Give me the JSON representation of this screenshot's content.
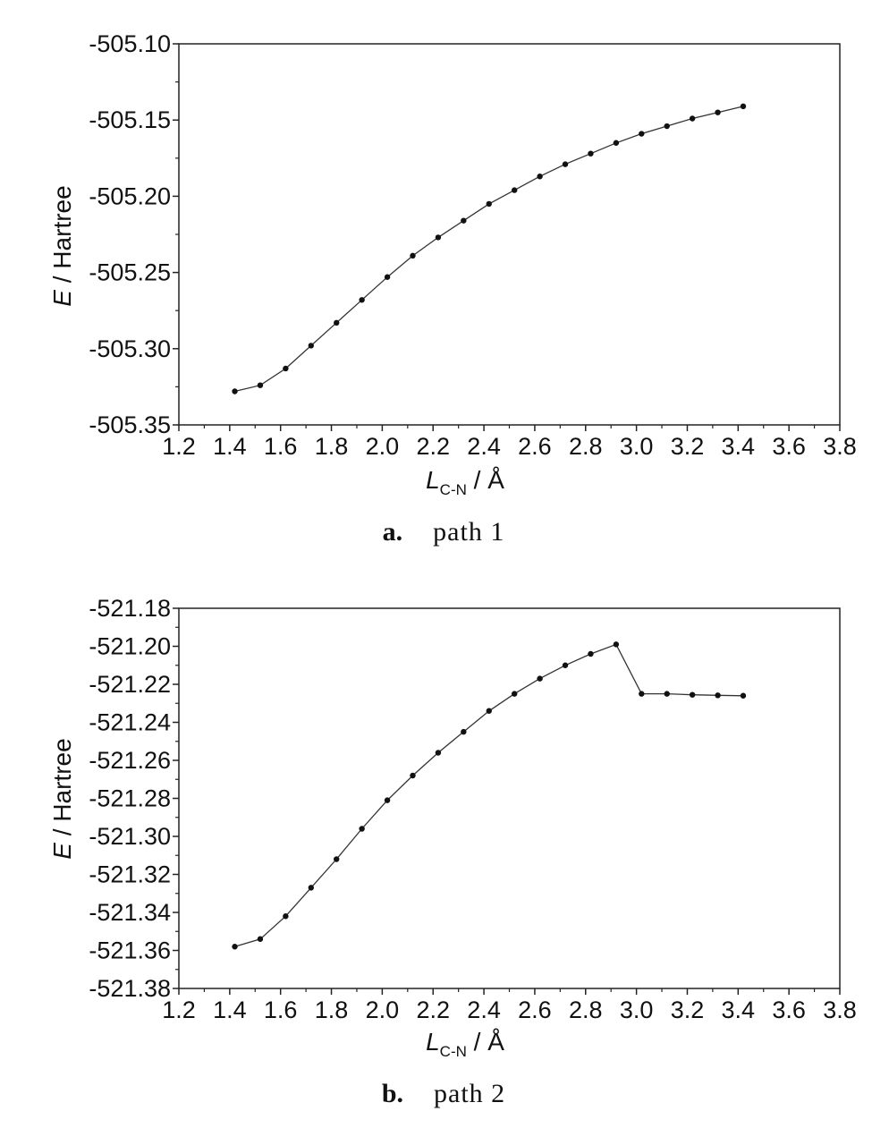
{
  "chart_data": [
    {
      "type": "line",
      "caption_letter": "a.",
      "caption_text": "path 1",
      "ylabel_italic": "E",
      "ylabel_rest": " / Hartree",
      "xlabel_italic": "L",
      "xlabel_sub": "C-N",
      "xlabel_rest": " / Å",
      "xlim": [
        1.2,
        3.8
      ],
      "ylim": [
        -505.35,
        -505.1
      ],
      "xticks": [
        "1.2",
        "1.4",
        "1.6",
        "1.8",
        "2.0",
        "2.2",
        "2.4",
        "2.6",
        "2.8",
        "3.0",
        "3.2",
        "3.4",
        "3.6",
        "3.8"
      ],
      "yticks": [
        "-505.10",
        "-505.15",
        "-505.20",
        "-505.25",
        "-505.30",
        "-505.35"
      ],
      "x": [
        1.42,
        1.52,
        1.62,
        1.72,
        1.82,
        1.92,
        2.02,
        2.12,
        2.22,
        2.32,
        2.42,
        2.52,
        2.62,
        2.72,
        2.82,
        2.92,
        3.02,
        3.12,
        3.22,
        3.32,
        3.42
      ],
      "y": [
        -505.328,
        -505.324,
        -505.313,
        -505.298,
        -505.283,
        -505.268,
        -505.253,
        -505.239,
        -505.227,
        -505.216,
        -505.205,
        -505.196,
        -505.187,
        -505.179,
        -505.172,
        -505.165,
        -505.159,
        -505.154,
        -505.149,
        -505.145,
        -505.141
      ]
    },
    {
      "type": "line",
      "caption_letter": "b.",
      "caption_text": "path 2",
      "ylabel_italic": "E",
      "ylabel_rest": " / Hartree",
      "xlabel_italic": "L",
      "xlabel_sub": "C-N",
      "xlabel_rest": " / Å",
      "xlim": [
        1.2,
        3.8
      ],
      "ylim": [
        -521.38,
        -521.18
      ],
      "xticks": [
        "1.2",
        "1.4",
        "1.6",
        "1.8",
        "2.0",
        "2.2",
        "2.4",
        "2.6",
        "2.8",
        "3.0",
        "3.2",
        "3.4",
        "3.6",
        "3.8"
      ],
      "yticks": [
        "-521.18",
        "-521.20",
        "-521.22",
        "-521.24",
        "-521.26",
        "-521.28",
        "-521.30",
        "-521.32",
        "-521.34",
        "-521.36",
        "-521.38"
      ],
      "x": [
        1.42,
        1.52,
        1.62,
        1.72,
        1.82,
        1.92,
        2.02,
        2.12,
        2.22,
        2.32,
        2.42,
        2.52,
        2.62,
        2.72,
        2.82,
        2.92,
        3.02,
        3.12,
        3.22,
        3.32,
        3.42
      ],
      "y": [
        -521.358,
        -521.354,
        -521.342,
        -521.327,
        -521.312,
        -521.296,
        -521.281,
        -521.268,
        -521.256,
        -521.245,
        -521.234,
        -521.225,
        -521.217,
        -521.21,
        -521.204,
        -521.199,
        -521.225,
        -521.225,
        -521.2255,
        -521.2258,
        -521.226
      ]
    }
  ]
}
